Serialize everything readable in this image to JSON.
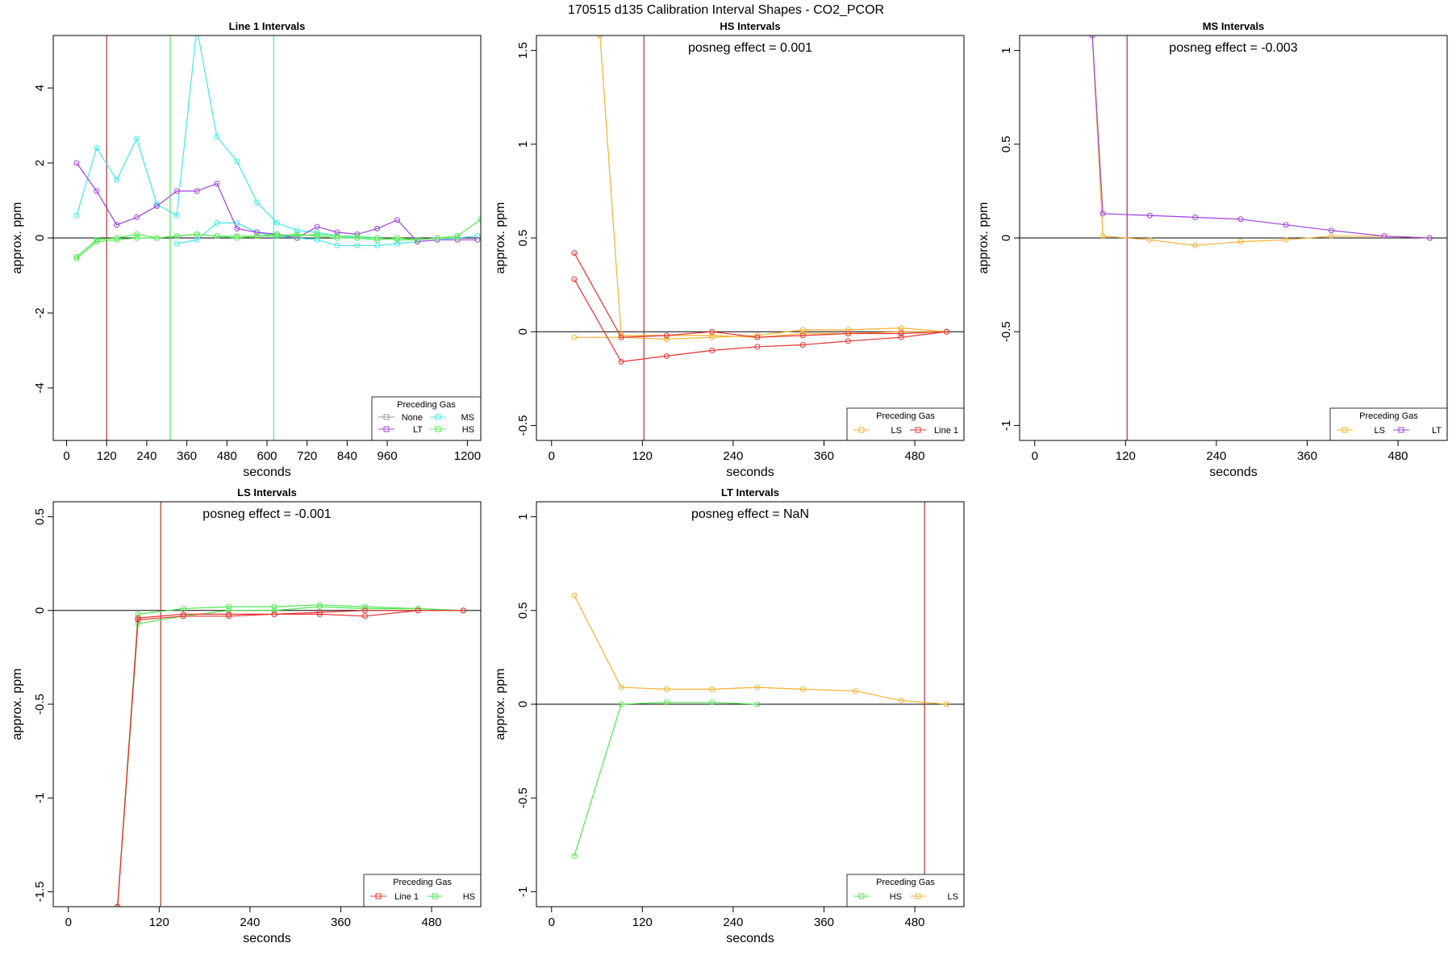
{
  "page_title": "170515  d135   Calibration Interval Shapes - CO2_PCOR",
  "chart_data": [
    {
      "type": "line",
      "title": "Line 1 Intervals",
      "xlabel": "seconds",
      "ylabel": "approx. ppm",
      "xlim": [
        -40,
        1240
      ],
      "ylim": [
        -5.4,
        5.4
      ],
      "xticks": [
        0,
        120,
        240,
        360,
        480,
        600,
        720,
        840,
        960,
        1200
      ],
      "yticks": [
        -4,
        -2,
        0,
        2,
        4
      ],
      "annotation": "",
      "vlines": [
        {
          "x": 120,
          "color": "#b03030"
        },
        {
          "x": 310,
          "color": "#4ee84e"
        },
        {
          "x": 620,
          "color": "#3de8e8"
        }
      ],
      "legend": {
        "title": "Preceding Gas",
        "placement": "bottom-right",
        "columns": 2,
        "entries": [
          {
            "name": "None",
            "color": "#999999"
          },
          {
            "name": "MS",
            "color": "#3de8e8"
          },
          {
            "name": "LT",
            "color": "#a040e0"
          },
          {
            "name": "HS",
            "color": "#4ee84e"
          }
        ]
      },
      "series": [
        {
          "name": "MS",
          "color": "#3de8e8",
          "x": [
            30,
            90,
            150,
            210,
            270,
            330,
            390,
            450,
            510,
            570,
            630,
            690,
            750,
            810,
            870,
            930
          ],
          "y": [
            0.6,
            2.4,
            1.55,
            2.65,
            0.9,
            0.6,
            5.6,
            2.7,
            2.05,
            0.95,
            0.4,
            0.2,
            0.15,
            0.05,
            0.0,
            0.0
          ]
        },
        {
          "name": "MS",
          "color": "#3de8e8",
          "x": [
            330,
            390,
            450,
            510,
            570,
            630,
            690,
            750,
            810,
            870,
            930,
            990,
            1050,
            1110,
            1170,
            1230
          ],
          "y": [
            -0.15,
            -0.05,
            0.4,
            0.4,
            0.15,
            0.05,
            0.0,
            -0.05,
            -0.2,
            -0.2,
            -0.2,
            -0.15,
            -0.1,
            -0.05,
            0.0,
            0.05
          ]
        },
        {
          "name": "LT",
          "color": "#a040e0",
          "x": [
            30,
            90,
            150,
            210,
            270,
            330,
            390,
            450,
            510,
            570,
            630,
            690,
            750,
            810,
            870,
            930,
            990,
            1050,
            1110,
            1170,
            1230
          ],
          "y": [
            2.0,
            1.25,
            0.35,
            0.55,
            0.85,
            1.25,
            1.25,
            1.45,
            0.25,
            0.15,
            0.1,
            0.0,
            0.3,
            0.15,
            0.1,
            0.25,
            0.48,
            -0.1,
            -0.05,
            -0.05,
            -0.05
          ]
        },
        {
          "name": "HS",
          "color": "#4ee84e",
          "x": [
            30,
            90,
            150,
            210,
            270,
            330,
            390,
            450,
            510,
            570,
            630,
            690,
            750,
            810,
            870,
            930,
            990,
            1050,
            1110,
            1170,
            1240
          ],
          "y": [
            -0.5,
            -0.05,
            0.0,
            0.1,
            0.0,
            0.05,
            0.1,
            0.05,
            0.0,
            0.05,
            0.1,
            0.05,
            0.1,
            0.05,
            0.05,
            0.0,
            -0.05,
            -0.05,
            0.0,
            0.05,
            0.5
          ]
        },
        {
          "name": "HS",
          "color": "#4ee84e",
          "x": [
            30,
            90,
            150,
            210,
            270,
            330,
            390,
            450,
            510,
            570,
            630,
            690,
            750,
            810,
            870,
            930,
            990,
            1050,
            1110,
            1170
          ],
          "y": [
            -0.55,
            -0.1,
            -0.05,
            0.0,
            0.0,
            0.05,
            0.1,
            0.05,
            0.05,
            0.05,
            0.05,
            0.1,
            0.05,
            0.0,
            0.0,
            -0.05,
            0.0,
            -0.05,
            0.0,
            0.0
          ]
        }
      ]
    },
    {
      "type": "line",
      "title": "HS Intervals",
      "xlabel": "seconds",
      "ylabel": "approx. ppm",
      "xlim": [
        -20,
        545
      ],
      "ylim": [
        -0.58,
        1.58
      ],
      "xticks": [
        0,
        120,
        240,
        360,
        480
      ],
      "yticks": [
        -0.5,
        0.0,
        0.5,
        1.0,
        1.5
      ],
      "annotation": "posneg effect = 0.001",
      "vlines": [
        {
          "x": 122,
          "color": "#b03030"
        }
      ],
      "legend": {
        "title": "Preceding Gas",
        "placement": "bottom-right",
        "columns": 2,
        "entries": [
          {
            "name": "LS",
            "color": "#f5b030"
          },
          {
            "name": "Line 1",
            "color": "#e83030"
          }
        ]
      },
      "series": [
        {
          "name": "LS",
          "color": "#f5b030",
          "x": [
            64,
            92
          ],
          "y": [
            1.58,
            -0.02
          ]
        },
        {
          "name": "LS",
          "color": "#f5b030",
          "x": [
            30,
            92,
            152,
            212,
            272,
            332,
            392,
            462,
            522
          ],
          "y": [
            -0.03,
            -0.03,
            -0.04,
            -0.03,
            -0.02,
            0.01,
            0.01,
            0.02,
            0.0
          ]
        },
        {
          "name": "LS",
          "color": "#f5b030",
          "x": [
            92,
            152,
            212,
            272,
            332,
            392,
            462,
            522
          ],
          "y": [
            -0.02,
            -0.02,
            -0.02,
            -0.03,
            -0.01,
            -0.01,
            0.0,
            0.0
          ]
        },
        {
          "name": "Line 1",
          "color": "#e83030",
          "x": [
            30,
            92,
            152,
            212,
            272,
            332,
            392,
            462,
            522
          ],
          "y": [
            0.42,
            -0.03,
            -0.02,
            0.0,
            -0.03,
            -0.02,
            -0.01,
            -0.01,
            0.0
          ]
        },
        {
          "name": "Line 1",
          "color": "#e83030",
          "x": [
            30,
            92,
            152,
            212,
            272,
            332,
            392,
            462,
            522
          ],
          "y": [
            0.28,
            -0.16,
            -0.13,
            -0.1,
            -0.08,
            -0.07,
            -0.05,
            -0.03,
            0.0
          ]
        }
      ]
    },
    {
      "type": "line",
      "title": "MS Intervals",
      "xlabel": "seconds",
      "ylabel": "approx. ppm",
      "xlim": [
        -20,
        545
      ],
      "ylim": [
        -1.08,
        1.08
      ],
      "xticks": [
        0,
        120,
        240,
        360,
        480
      ],
      "yticks": [
        -1.0,
        -0.5,
        0.0,
        0.5,
        1.0
      ],
      "annotation": "posneg effect = -0.003",
      "vlines": [
        {
          "x": 122,
          "color": "#b03030"
        }
      ],
      "legend": {
        "title": "Preceding Gas",
        "placement": "bottom-right",
        "columns": 2,
        "entries": [
          {
            "name": "LS",
            "color": "#f5b030"
          },
          {
            "name": "LT",
            "color": "#a040e0"
          }
        ]
      },
      "series": [
        {
          "name": "LS",
          "color": "#f5b030",
          "x": [
            76,
            90,
            152,
            212,
            272,
            332,
            392,
            462,
            522
          ],
          "y": [
            1.08,
            0.01,
            -0.01,
            -0.04,
            -0.02,
            -0.01,
            0.01,
            0.01,
            0.0
          ]
        },
        {
          "name": "LT",
          "color": "#a040e0",
          "x": [
            76,
            90,
            152,
            212,
            272,
            332,
            392,
            462,
            522
          ],
          "y": [
            1.08,
            0.13,
            0.12,
            0.11,
            0.1,
            0.07,
            0.04,
            0.01,
            0.0
          ]
        }
      ]
    },
    {
      "type": "line",
      "title": "LS Intervals",
      "xlabel": "seconds",
      "ylabel": "approx. ppm",
      "xlim": [
        -20,
        545
      ],
      "ylim": [
        -1.58,
        0.58
      ],
      "xticks": [
        0,
        120,
        240,
        360,
        480
      ],
      "yticks": [
        -1.5,
        -1.0,
        -0.5,
        0.0,
        0.5
      ],
      "annotation": "posneg effect = -0.001",
      "vlines": [
        {
          "x": 122,
          "color": "#b03030"
        }
      ],
      "legend": {
        "title": "Preceding Gas",
        "placement": "bottom-right",
        "columns": 2,
        "entries": [
          {
            "name": "Line 1",
            "color": "#e83030"
          },
          {
            "name": "HS",
            "color": "#4ee84e"
          }
        ]
      },
      "series": [
        {
          "name": "HS",
          "color": "#4ee84e",
          "x": [
            65,
            92,
            152,
            212,
            272,
            332,
            392,
            462,
            522
          ],
          "y": [
            -1.58,
            -0.02,
            0.01,
            0.02,
            0.02,
            0.03,
            0.02,
            0.01,
            0.0
          ]
        },
        {
          "name": "HS",
          "color": "#4ee84e",
          "x": [
            65,
            92,
            152,
            212,
            272,
            332,
            392,
            462,
            522
          ],
          "y": [
            -1.58,
            -0.07,
            -0.03,
            0.0,
            0.0,
            0.02,
            0.01,
            0.01,
            0.0
          ]
        },
        {
          "name": "Line 1",
          "color": "#e83030",
          "x": [
            65,
            92,
            152,
            212,
            272,
            332,
            392,
            462,
            522
          ],
          "y": [
            -1.58,
            -0.04,
            -0.02,
            -0.02,
            -0.02,
            -0.01,
            0.0,
            0.0,
            0.0
          ]
        },
        {
          "name": "Line 1",
          "color": "#e83030",
          "x": [
            65,
            92,
            152,
            212,
            272,
            332,
            392,
            462,
            522
          ],
          "y": [
            -1.58,
            -0.05,
            -0.03,
            -0.03,
            -0.02,
            -0.02,
            -0.03,
            0.0,
            0.0
          ]
        }
      ]
    },
    {
      "type": "line",
      "title": "LT Intervals",
      "xlabel": "seconds",
      "ylabel": "approx. ppm",
      "xlim": [
        -20,
        545
      ],
      "ylim": [
        -1.08,
        1.08
      ],
      "xticks": [
        0,
        120,
        240,
        360,
        480
      ],
      "yticks": [
        -1.0,
        -0.5,
        0.0,
        0.5,
        1.0
      ],
      "annotation": "posneg effect = NaN",
      "vlines": [
        {
          "x": 493,
          "color": "#b03030"
        }
      ],
      "legend": {
        "title": "Preceding Gas",
        "placement": "bottom-right",
        "columns": 2,
        "entries": [
          {
            "name": "HS",
            "color": "#4ee84e"
          },
          {
            "name": "LS",
            "color": "#f5b030"
          }
        ]
      },
      "series": [
        {
          "name": "LS",
          "color": "#f5b030",
          "x": [
            30,
            92,
            152,
            212,
            272,
            332,
            402,
            462,
            522
          ],
          "y": [
            0.58,
            0.09,
            0.08,
            0.08,
            0.09,
            0.08,
            0.07,
            0.02,
            0.0
          ]
        },
        {
          "name": "HS",
          "color": "#4ee84e",
          "x": [
            30,
            92,
            152,
            212,
            272
          ],
          "y": [
            -0.81,
            0.0,
            0.01,
            0.01,
            0.0
          ]
        }
      ]
    }
  ]
}
